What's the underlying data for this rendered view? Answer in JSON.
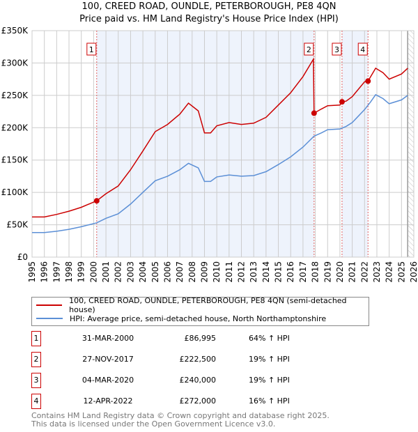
{
  "chart_data": {
    "type": "line",
    "title": "100, CREED ROAD, OUNDLE, PETERBOROUGH, PE8 4QN",
    "subtitle": "Price paid vs. HM Land Registry's House Price Index (HPI)",
    "xlim": [
      1995,
      2026
    ],
    "ylim": [
      0,
      350000
    ],
    "y_ticks": [
      {
        "v": 0,
        "label": "£0"
      },
      {
        "v": 50000,
        "label": "£50K"
      },
      {
        "v": 100000,
        "label": "£100K"
      },
      {
        "v": 150000,
        "label": "£150K"
      },
      {
        "v": 200000,
        "label": "£200K"
      },
      {
        "v": 250000,
        "label": "£250K"
      },
      {
        "v": 300000,
        "label": "£300K"
      },
      {
        "v": 350000,
        "label": "£350K"
      }
    ],
    "x_ticks": [
      "1995",
      "1996",
      "1997",
      "1998",
      "1999",
      "2000",
      "2001",
      "2002",
      "2003",
      "2004",
      "2005",
      "2006",
      "2007",
      "2008",
      "2009",
      "2010",
      "2011",
      "2012",
      "2013",
      "2014",
      "2015",
      "2016",
      "2017",
      "2018",
      "2019",
      "2020",
      "2021",
      "2022",
      "2023",
      "2024",
      "2025",
      "2026"
    ],
    "grid": true,
    "shaded_ranges": [
      [
        2000.25,
        2017.9
      ],
      [
        2020.17,
        2022.28
      ]
    ],
    "hatched_from": 2025.5,
    "series": [
      {
        "name": "100, CREED ROAD, OUNDLE, PETERBOROUGH, PE8 4QN (semi-detached house)",
        "color": "#cc0000",
        "x": [
          1995,
          1996,
          1997,
          1998,
          1999,
          2000.25,
          2001,
          2002,
          2003,
          2004,
          2005,
          2006,
          2007,
          2007.7,
          2008.5,
          2009,
          2009.5,
          2010,
          2011,
          2012,
          2013,
          2014,
          2015,
          2016,
          2017,
          2017.85,
          2017.9,
          2018.5,
          2019,
          2020,
          2020.17,
          2020.5,
          2021,
          2022,
          2022.28,
          2022.5,
          2022.9,
          2023.5,
          2024,
          2025,
          2025.5
        ],
        "y": [
          62000,
          62000,
          66000,
          71000,
          77000,
          87000,
          98000,
          110000,
          135000,
          164000,
          194000,
          205000,
          221000,
          238000,
          226000,
          192000,
          192000,
          203000,
          208000,
          205000,
          207000,
          216000,
          235000,
          254000,
          279000,
          306000,
          222500,
          229000,
          234000,
          235000,
          240000,
          241000,
          248000,
          271000,
          272000,
          279000,
          292000,
          285000,
          275000,
          283000,
          292000
        ]
      },
      {
        "name": "HPI: Average price, semi-detached house, North Northamptonshire",
        "color": "#5b8fd6",
        "x": [
          1995,
          1996,
          1997,
          1998,
          1999,
          2000.25,
          2001,
          2002,
          2003,
          2004,
          2005,
          2006,
          2007,
          2007.7,
          2008.5,
          2009,
          2009.5,
          2010,
          2011,
          2012,
          2013,
          2014,
          2015,
          2016,
          2017,
          2017.9,
          2018.5,
          2019,
          2020,
          2020.5,
          2021,
          2022,
          2022.5,
          2022.9,
          2023.5,
          2024,
          2025,
          2025.5
        ],
        "y": [
          38000,
          38000,
          40000,
          43000,
          47000,
          53000,
          60000,
          67000,
          82000,
          100000,
          118000,
          125000,
          135000,
          145000,
          138000,
          117000,
          117000,
          124000,
          127000,
          125000,
          126000,
          132000,
          143000,
          155000,
          170000,
          187000,
          192000,
          197000,
          198000,
          202000,
          208000,
          228000,
          240000,
          251000,
          245000,
          237000,
          243000,
          250000
        ]
      }
    ],
    "sales": [
      {
        "n": "1",
        "x": 2000.25,
        "y": 86995
      },
      {
        "n": "2",
        "x": 2017.9,
        "y": 222500
      },
      {
        "n": "3",
        "x": 2020.17,
        "y": 240000
      },
      {
        "n": "4",
        "x": 2022.28,
        "y": 272000
      }
    ]
  },
  "header": {
    "title": "100, CREED ROAD, OUNDLE, PETERBOROUGH, PE8 4QN",
    "subtitle": "Price paid vs. HM Land Registry's House Price Index (HPI)"
  },
  "legend": {
    "property": "100, CREED ROAD, OUNDLE, PETERBOROUGH, PE8 4QN (semi-detached house)",
    "hpi": "HPI: Average price, semi-detached house, North Northamptonshire"
  },
  "transactions": [
    {
      "n": "1",
      "date": "31-MAR-2000",
      "price": "£86,995",
      "hpi": "64% ↑ HPI"
    },
    {
      "n": "2",
      "date": "27-NOV-2017",
      "price": "£222,500",
      "hpi": "19% ↑ HPI"
    },
    {
      "n": "3",
      "date": "04-MAR-2020",
      "price": "£240,000",
      "hpi": "19% ↑ HPI"
    },
    {
      "n": "4",
      "date": "12-APR-2022",
      "price": "£272,000",
      "hpi": "16% ↑ HPI"
    }
  ],
  "footer": {
    "line1": "Contains HM Land Registry data © Crown copyright and database right 2025.",
    "line2": "This data is licensed under the Open Government Licence v3.0."
  }
}
